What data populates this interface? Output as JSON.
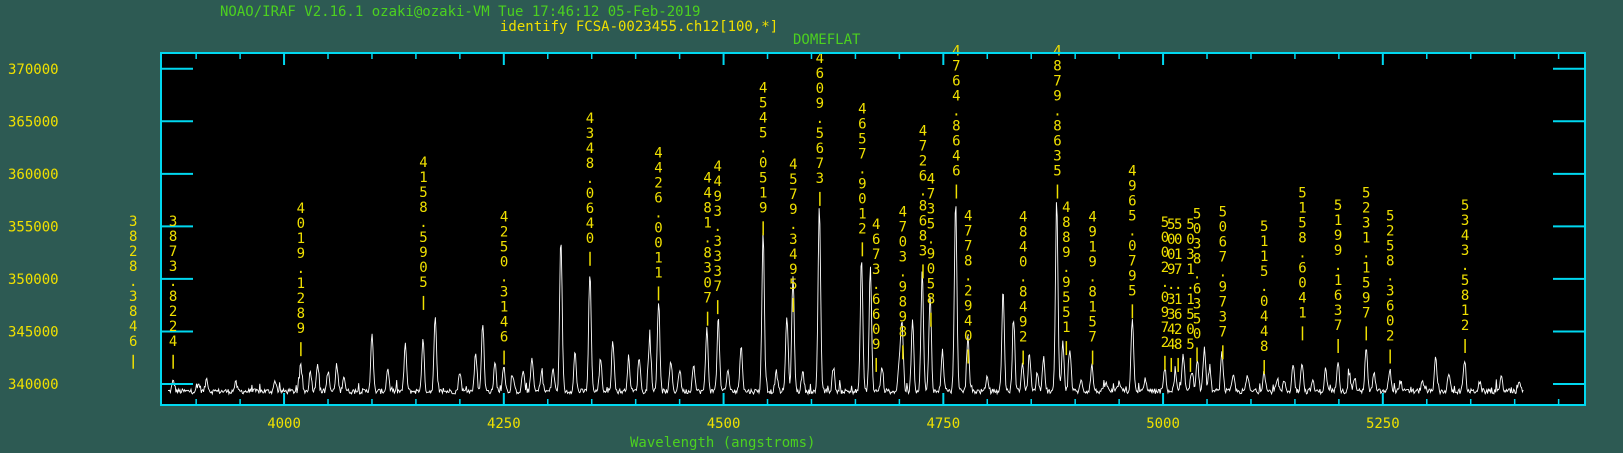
{
  "header": {
    "line1": "NOAO/IRAF V2.16.1 ozaki@ozaki-VM Tue 17:46:12 05-Feb-2019",
    "line2": "identify FCSA-0023455.ch12[100,*]",
    "line3": "DOMEFLAT"
  },
  "colors": {
    "background": "#2d5a53",
    "plot_bg": "#000000",
    "frame": "#00d8f0",
    "spectrum": "#ffffff",
    "labels": "#f0e000",
    "header_green": "#4cd11f"
  },
  "chart_data": {
    "type": "line",
    "title": "DOMEFLAT",
    "xlabel": "Wavelength (angstroms)",
    "ylabel": "",
    "xlim": [
      3860,
      5480
    ],
    "ylim": [
      338000,
      371500
    ],
    "xticks": [
      4000,
      4250,
      4500,
      4750,
      5000,
      5250
    ],
    "xtick_labels": [
      "4000",
      "4250",
      "4500",
      "4750",
      "5000",
      "5250"
    ],
    "yticks": [
      340000,
      345000,
      350000,
      355000,
      360000,
      365000,
      370000
    ],
    "ytick_labels": [
      "340000",
      "345000",
      "350000",
      "355000",
      "360000",
      "365000",
      "370000"
    ],
    "grid": false,
    "continuum": 339300,
    "peaks": [
      [
        3874,
        340300
      ],
      [
        3903,
        340000
      ],
      [
        3912,
        340500
      ],
      [
        3945,
        340100
      ],
      [
        3990,
        340300
      ],
      [
        4019,
        341800
      ],
      [
        4030,
        341200
      ],
      [
        4038,
        342000
      ],
      [
        4050,
        341200
      ],
      [
        4060,
        341800
      ],
      [
        4068,
        340800
      ],
      [
        4100,
        344800
      ],
      [
        4118,
        341500
      ],
      [
        4138,
        343800
      ],
      [
        4158,
        344200
      ],
      [
        4172,
        346300
      ],
      [
        4200,
        341200
      ],
      [
        4218,
        343000
      ],
      [
        4226,
        345900
      ],
      [
        4240,
        342000
      ],
      [
        4250,
        341900
      ],
      [
        4260,
        340800
      ],
      [
        4272,
        341300
      ],
      [
        4282,
        342500
      ],
      [
        4293,
        341200
      ],
      [
        4306,
        341500
      ],
      [
        4315,
        353500
      ],
      [
        4331,
        343000
      ],
      [
        4348,
        350500
      ],
      [
        4360,
        342400
      ],
      [
        4374,
        344300
      ],
      [
        4392,
        342600
      ],
      [
        4404,
        342600
      ],
      [
        4416,
        344400
      ],
      [
        4426,
        347600
      ],
      [
        4440,
        342100
      ],
      [
        4450,
        341400
      ],
      [
        4466,
        342000
      ],
      [
        4481,
        345300
      ],
      [
        4494,
        346300
      ],
      [
        4505,
        341300
      ],
      [
        4520,
        343800
      ],
      [
        4545,
        354600
      ],
      [
        4560,
        341200
      ],
      [
        4572,
        346600
      ],
      [
        4579,
        350200
      ],
      [
        4590,
        341200
      ],
      [
        4609,
        356900
      ],
      [
        4625,
        341600
      ],
      [
        4657,
        352100
      ],
      [
        4667,
        351000
      ],
      [
        4680,
        341400
      ],
      [
        4700,
        342100
      ],
      [
        4703,
        345900
      ],
      [
        4715,
        346300
      ],
      [
        4726,
        350800
      ],
      [
        4735,
        348400
      ],
      [
        4749,
        343200
      ],
      [
        4764,
        357600
      ],
      [
        4778,
        344600
      ],
      [
        4800,
        340600
      ],
      [
        4818,
        349100
      ],
      [
        4830,
        346000
      ],
      [
        4840,
        342000
      ],
      [
        4848,
        343000
      ],
      [
        4857,
        341200
      ],
      [
        4864,
        342500
      ],
      [
        4879,
        357800
      ],
      [
        4886,
        344000
      ],
      [
        4894,
        343300
      ],
      [
        4907,
        340300
      ],
      [
        4919,
        341800
      ],
      [
        4935,
        340200
      ],
      [
        4950,
        340200
      ],
      [
        4965,
        346400
      ],
      [
        4980,
        340500
      ],
      [
        5002,
        341500
      ],
      [
        5014,
        340800
      ],
      [
        5023,
        342800
      ],
      [
        5033,
        341300
      ],
      [
        5039,
        342300
      ],
      [
        5047,
        343500
      ],
      [
        5053,
        341200
      ],
      [
        5067,
        343000
      ],
      [
        5080,
        340900
      ],
      [
        5096,
        340800
      ],
      [
        5115,
        341300
      ],
      [
        5130,
        340600
      ],
      [
        5138,
        340300
      ],
      [
        5148,
        341900
      ],
      [
        5158,
        342100
      ],
      [
        5170,
        340300
      ],
      [
        5185,
        341400
      ],
      [
        5199,
        342300
      ],
      [
        5212,
        341000
      ],
      [
        5218,
        340600
      ],
      [
        5231,
        343500
      ],
      [
        5240,
        341000
      ],
      [
        5258,
        341400
      ],
      [
        5270,
        340300
      ],
      [
        5295,
        340400
      ],
      [
        5310,
        342400
      ],
      [
        5325,
        341000
      ],
      [
        5343,
        342300
      ],
      [
        5360,
        340200
      ],
      [
        5385,
        340700
      ],
      [
        5405,
        340300
      ]
    ],
    "line_labels": [
      {
        "text": "3828.3846",
        "wavelength": 3828.3846,
        "ytop": 356200
      },
      {
        "text": "3873.8224",
        "wavelength": 3873.8224,
        "ytop": 356200
      },
      {
        "text": "4019.1289",
        "wavelength": 4019.1289,
        "ytop": 357400
      },
      {
        "text": "4158.5905",
        "wavelength": 4158.5905,
        "ytop": 361800
      },
      {
        "text": "4250.3146",
        "wavelength": 4250.3146,
        "ytop": 356600
      },
      {
        "text": "4348.0640",
        "wavelength": 4348.064,
        "ytop": 366000
      },
      {
        "text": "4426.0011",
        "wavelength": 4426.0011,
        "ytop": 362700
      },
      {
        "text": "4481.8307",
        "wavelength": 4481.8307,
        "ytop": 360300
      },
      {
        "text": "4493.3337",
        "wavelength": 4493.3337,
        "ytop": 361400
      },
      {
        "text": "4545.0519",
        "wavelength": 4545.0519,
        "ytop": 368900
      },
      {
        "text": "4579.3495",
        "wavelength": 4579.3495,
        "ytop": 361600
      },
      {
        "text": "4609.5673",
        "wavelength": 4609.5673,
        "ytop": 371700
      },
      {
        "text": "4657.9012",
        "wavelength": 4657.9012,
        "ytop": 366900
      },
      {
        "text": "4673.6609",
        "wavelength": 4673.6609,
        "ytop": 355900
      },
      {
        "text": "4703.9898",
        "wavelength": 4703.9898,
        "ytop": 357100
      },
      {
        "text": "4726.8683",
        "wavelength": 4726.8683,
        "ytop": 364800
      },
      {
        "text": "4735.9058",
        "wavelength": 4735.9058,
        "ytop": 360200
      },
      {
        "text": "4764.8646",
        "wavelength": 4764.8646,
        "ytop": 372400
      },
      {
        "text": "4778.2940",
        "wavelength": 4778.294,
        "ytop": 356700
      },
      {
        "text": "4840.8492",
        "wavelength": 4840.8492,
        "ytop": 356600
      },
      {
        "text": "4879.8635",
        "wavelength": 4879.8635,
        "ytop": 372400
      },
      {
        "text": "4889.9551",
        "wavelength": 4889.9551,
        "ytop": 357500
      },
      {
        "text": "4919.8157",
        "wavelength": 4919.8157,
        "ytop": 356600
      },
      {
        "text": "4965.0795",
        "wavelength": 4965.0795,
        "ytop": 361000
      },
      {
        "text": "5002.0972",
        "wavelength": 5002.0972,
        "ytop": 356100
      },
      {
        "text": "5009.3344",
        "wavelength": 5009.3344,
        "ytop": 355900
      },
      {
        "text": "5017.1628",
        "wavelength": 5017.1628,
        "ytop": 355900
      },
      {
        "text": "5031.1505",
        "wavelength": 5031.1505,
        "ytop": 355900
      },
      {
        "text": "5038.6350",
        "wavelength": 5038.635,
        "ytop": 356900
      },
      {
        "text": "5067.9737",
        "wavelength": 5067.9737,
        "ytop": 357100
      },
      {
        "text": "5115.0448",
        "wavelength": 5115.0448,
        "ytop": 355700
      },
      {
        "text": "5158.6041",
        "wavelength": 5158.6041,
        "ytop": 358900
      },
      {
        "text": "5199.1637",
        "wavelength": 5199.1637,
        "ytop": 357700
      },
      {
        "text": "5231.1597",
        "wavelength": 5231.1597,
        "ytop": 358900
      },
      {
        "text": "5258.3602",
        "wavelength": 5258.3602,
        "ytop": 356700
      },
      {
        "text": "5343.5812",
        "wavelength": 5343.5812,
        "ytop": 357700
      }
    ]
  }
}
